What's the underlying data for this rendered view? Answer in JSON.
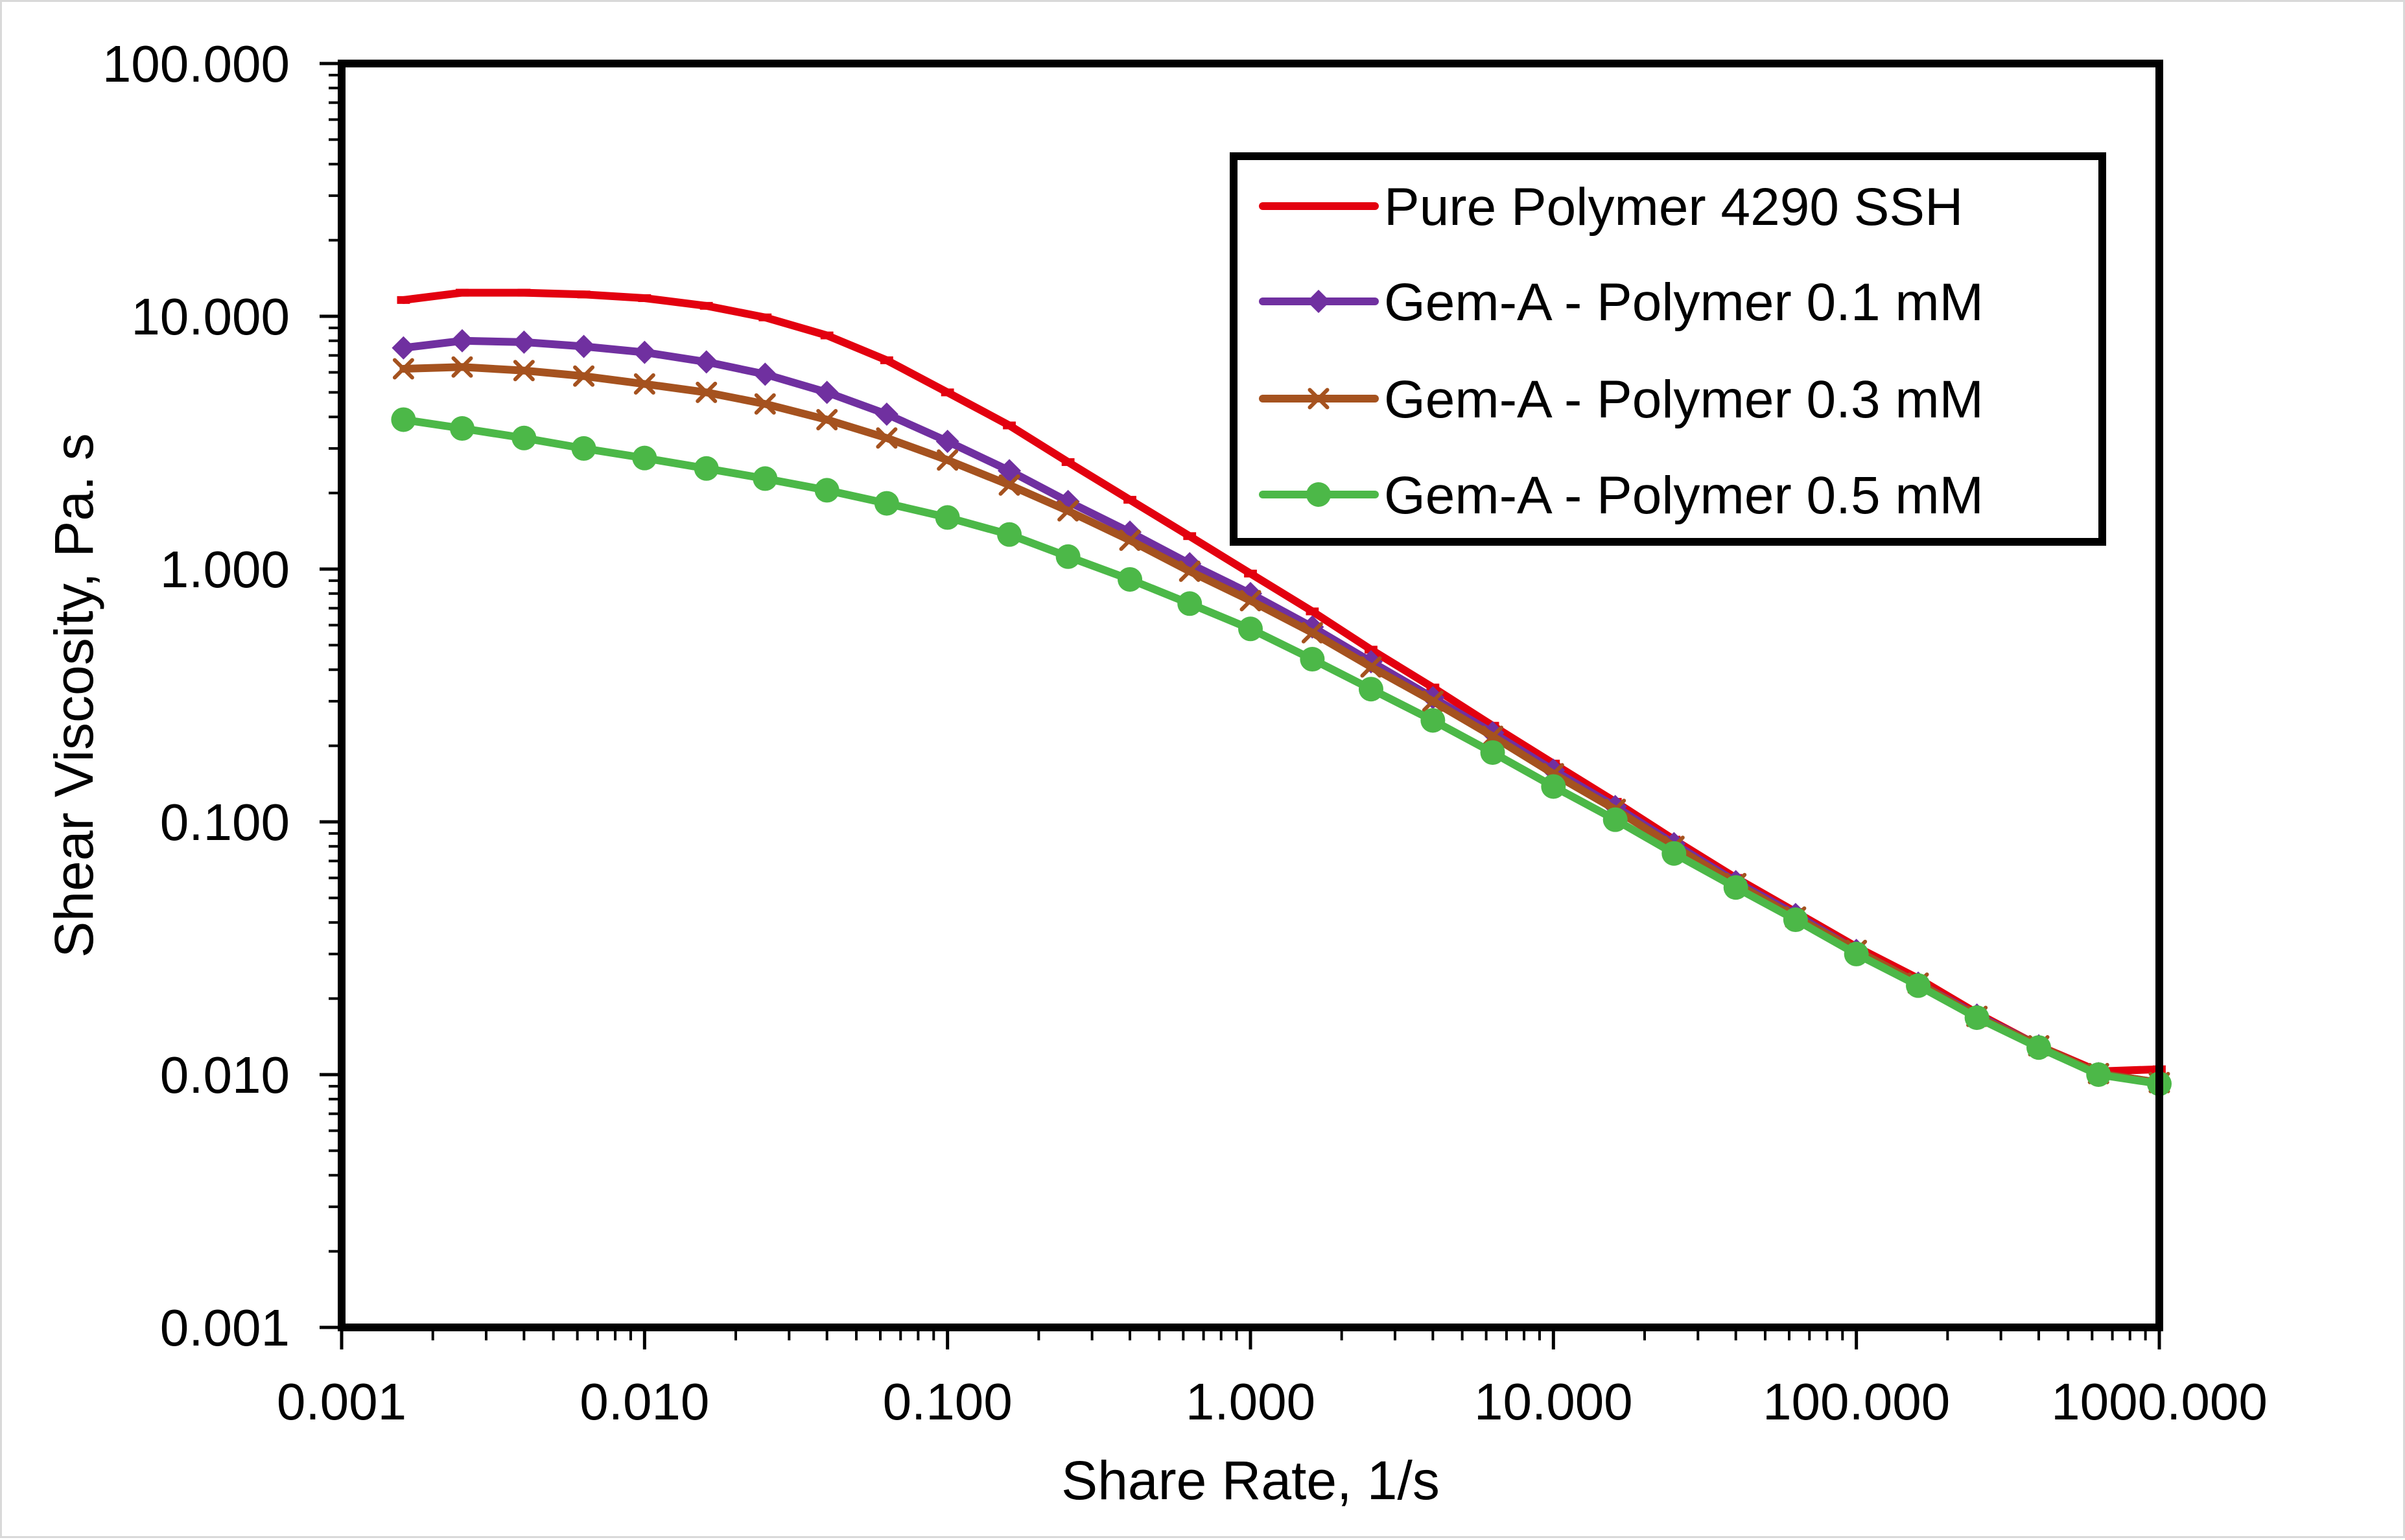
{
  "chart_data": {
    "type": "line",
    "title": "",
    "xlabel": "Share Rate, 1/s",
    "ylabel": "Shear Viscosity, Pa. s",
    "xscale": "log",
    "yscale": "log",
    "xlim": [
      0.001,
      1000
    ],
    "ylim": [
      0.001,
      100
    ],
    "x_tick_values": [
      0.001,
      0.01,
      0.1,
      1,
      10,
      100,
      1000
    ],
    "x_tick_labels": [
      "0.001",
      "0.010",
      "0.100",
      "1.000",
      "10.000",
      "100.000",
      "1000.000"
    ],
    "y_tick_values": [
      0.001,
      0.01,
      0.1,
      1,
      10,
      100
    ],
    "y_tick_labels": [
      "0.001",
      "0.010",
      "0.100",
      "1.000",
      "10.000",
      "100.000"
    ],
    "grid": false,
    "legend_position": "top-right",
    "x": [
      0.0016,
      0.0025,
      0.004,
      0.0063,
      0.01,
      0.016,
      0.025,
      0.04,
      0.063,
      0.1,
      0.16,
      0.25,
      0.4,
      0.63,
      1,
      1.6,
      2.5,
      4,
      6.3,
      10,
      16,
      25,
      40,
      63,
      100,
      160,
      250,
      400,
      630,
      1000
    ],
    "series": [
      {
        "name": "Pure Polymer 4290 SSH",
        "color": "#e3000f",
        "marker": "dash",
        "values": [
          11.6,
          12.4,
          12.4,
          12.2,
          11.8,
          11.0,
          9.9,
          8.4,
          6.7,
          5.0,
          3.7,
          2.65,
          1.88,
          1.35,
          0.96,
          0.68,
          0.48,
          0.34,
          0.24,
          0.17,
          0.12,
          0.085,
          0.06,
          0.044,
          0.032,
          0.024,
          0.0175,
          0.013,
          0.0103,
          0.0105
        ]
      },
      {
        "name": "Gem-A - Polymer 0.1 mM",
        "color": "#7030a0",
        "marker": "diamond",
        "values": [
          7.5,
          8.0,
          7.9,
          7.6,
          7.2,
          6.6,
          5.9,
          5.0,
          4.1,
          3.2,
          2.45,
          1.85,
          1.4,
          1.05,
          0.8,
          0.59,
          0.43,
          0.31,
          0.225,
          0.16,
          0.115,
          0.082,
          0.058,
          0.043,
          0.031,
          0.023,
          0.0172,
          0.013,
          0.0101,
          0.0093
        ]
      },
      {
        "name": "Gem-A  - Polymer 0.3 mM",
        "color": "#a5521f",
        "marker": "x",
        "values": [
          6.2,
          6.3,
          6.1,
          5.8,
          5.4,
          5.0,
          4.5,
          3.9,
          3.3,
          2.7,
          2.15,
          1.7,
          1.3,
          0.98,
          0.75,
          0.56,
          0.41,
          0.3,
          0.218,
          0.155,
          0.112,
          0.08,
          0.057,
          0.042,
          0.031,
          0.023,
          0.017,
          0.013,
          0.0101,
          0.0093
        ]
      },
      {
        "name": "Gem-A - Polymer 0.5 mM",
        "color": "#4cb848",
        "marker": "circle",
        "values": [
          3.9,
          3.6,
          3.3,
          3.0,
          2.75,
          2.5,
          2.28,
          2.05,
          1.82,
          1.6,
          1.37,
          1.12,
          0.91,
          0.73,
          0.58,
          0.44,
          0.335,
          0.252,
          0.188,
          0.138,
          0.102,
          0.075,
          0.055,
          0.041,
          0.03,
          0.0225,
          0.0168,
          0.0128,
          0.01,
          0.0092
        ]
      }
    ]
  }
}
